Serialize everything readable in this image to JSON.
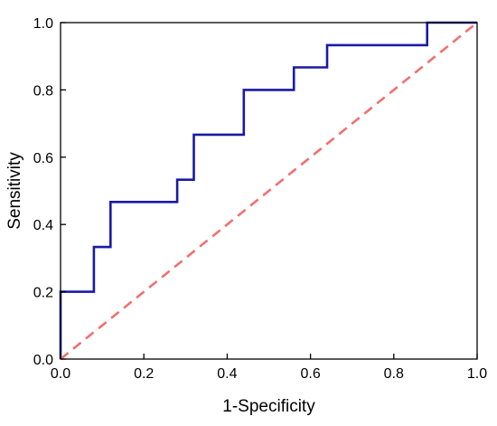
{
  "chart_data": {
    "type": "line",
    "title": "",
    "xlabel": "1-Specificity",
    "ylabel": "Sensitivity",
    "xlim": [
      0,
      1
    ],
    "ylim": [
      0,
      1
    ],
    "x_ticks": [
      "0.0",
      "0.2",
      "0.4",
      "0.6",
      "0.8",
      "1.0"
    ],
    "y_ticks": [
      "0.0",
      "0.2",
      "0.4",
      "0.6",
      "0.8",
      "1.0"
    ],
    "grid": false,
    "legend": "none",
    "series": [
      {
        "style": "step",
        "color": "#1a1aa6",
        "x": [
          0,
          0,
          0.08,
          0.08,
          0.12,
          0.12,
          0.28,
          0.28,
          0.32,
          0.32,
          0.44,
          0.44,
          0.56,
          0.56,
          0.64,
          0.64,
          0.88,
          0.88,
          1.0
        ],
        "y": [
          0,
          0.2,
          0.2,
          0.333,
          0.333,
          0.467,
          0.467,
          0.533,
          0.533,
          0.667,
          0.667,
          0.8,
          0.8,
          0.867,
          0.867,
          0.933,
          0.933,
          1.0,
          1.0
        ]
      },
      {
        "style": "dashed",
        "color": "#f07070",
        "x": [
          0,
          1
        ],
        "y": [
          0,
          1
        ]
      }
    ]
  }
}
